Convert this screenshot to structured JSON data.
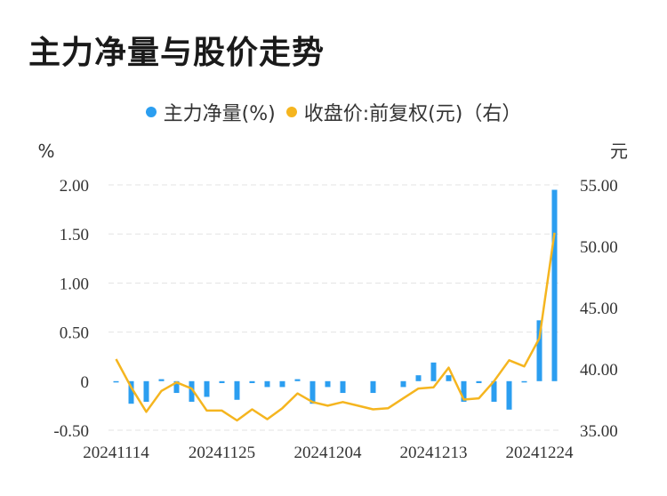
{
  "title": "主力净量与股价走势",
  "legend": {
    "bar_label": "主力净量(%)",
    "line_label": "收盘价:前复权(元)（右）"
  },
  "colors": {
    "bar": "#2b9ef0",
    "line": "#f5b51f",
    "grid": "#e3e3e3",
    "text": "#333333"
  },
  "chart_data": {
    "type": "bar+line",
    "left_axis": {
      "unit": "%",
      "ylim": [
        -0.5,
        2.0
      ],
      "ticks": [
        2.0,
        1.5,
        1.0,
        0.5,
        0,
        -0.5
      ],
      "tick_labels": [
        "2.00",
        "1.50",
        "1.00",
        "0.50",
        "0",
        "-0.50"
      ]
    },
    "right_axis": {
      "unit": "元",
      "ylim": [
        35,
        55
      ],
      "ticks": [
        55,
        50,
        45,
        40,
        35
      ],
      "tick_labels": [
        "55.00",
        "50.00",
        "45.00",
        "40.00",
        "35.00"
      ]
    },
    "x_tick_labels": [
      "20241114",
      "20241125",
      "20241204",
      "20241213",
      "20241224"
    ],
    "x_tick_indices": [
      0,
      7,
      14,
      21,
      28
    ],
    "grid": true,
    "legend_position": "top-center",
    "series": [
      {
        "name": "主力净量(%)",
        "type": "bar",
        "axis": "left",
        "values": [
          -0.01,
          -0.23,
          -0.21,
          0.02,
          -0.12,
          -0.21,
          -0.16,
          -0.02,
          -0.19,
          -0.02,
          -0.06,
          -0.06,
          0.02,
          -0.23,
          -0.06,
          -0.12,
          0,
          -0.12,
          0,
          -0.06,
          0.06,
          0.19,
          0.06,
          -0.21,
          -0.02,
          -0.21,
          -0.29,
          -0.01,
          0.62,
          1.95
        ]
      },
      {
        "name": "收盘价:前复权(元)（右）",
        "type": "line",
        "axis": "right",
        "values": [
          40.8,
          38.5,
          36.5,
          38.2,
          38.9,
          38.4,
          36.6,
          36.6,
          35.8,
          36.7,
          35.9,
          36.8,
          38.0,
          37.3,
          37.0,
          37.3,
          37.0,
          36.7,
          36.8,
          37.6,
          38.4,
          38.5,
          40.1,
          37.5,
          37.6,
          39.0,
          40.7,
          40.2,
          42.5,
          51.1
        ]
      }
    ]
  }
}
